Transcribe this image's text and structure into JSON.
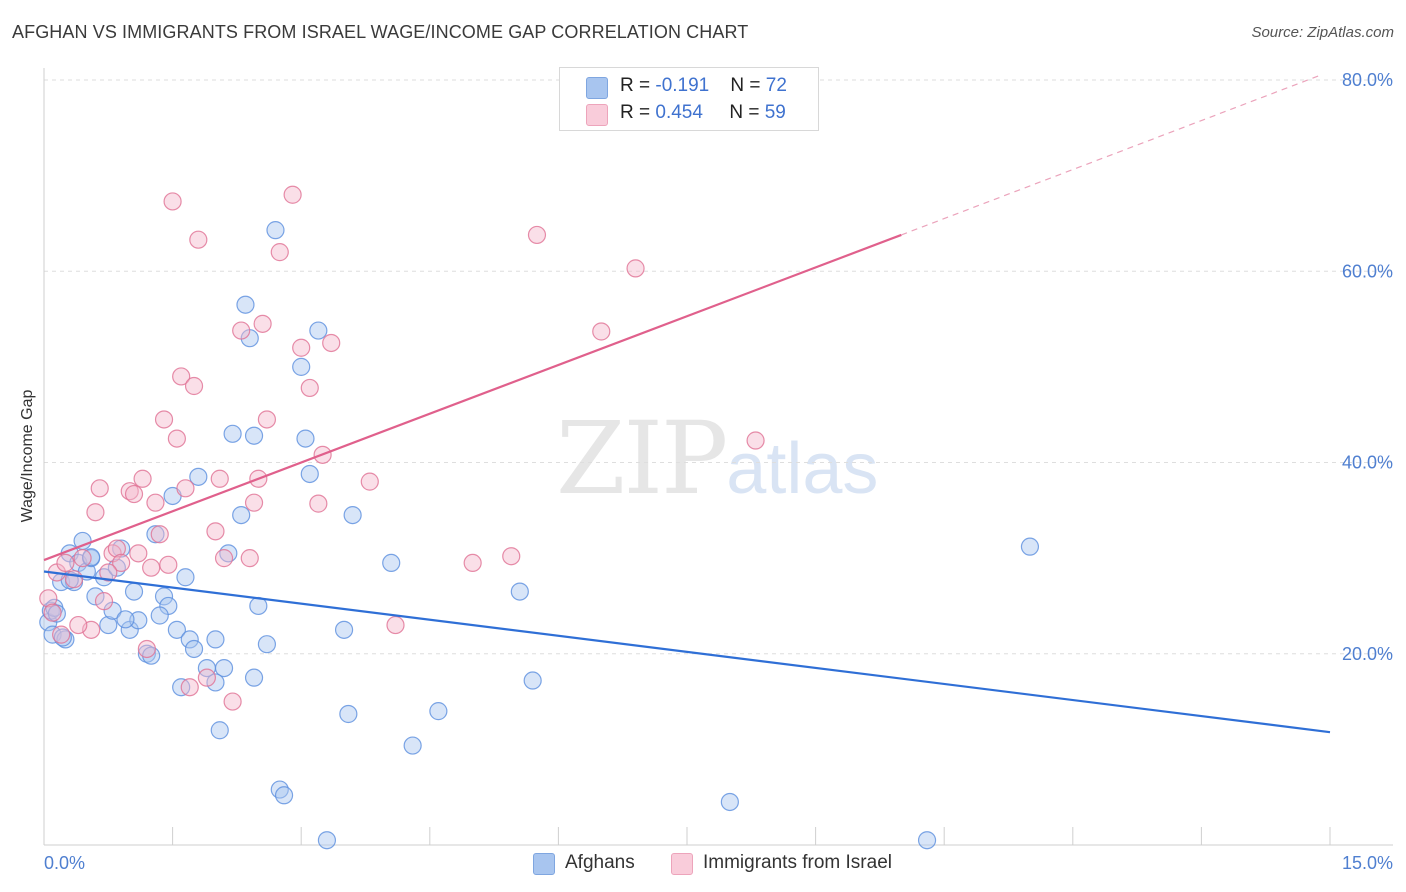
{
  "header": {
    "title": "AFGHAN VS IMMIGRANTS FROM ISRAEL WAGE/INCOME GAP CORRELATION CHART",
    "source": "Source: ZipAtlas.com"
  },
  "watermark": {
    "zip": "ZIP",
    "atlas": "atlas"
  },
  "legend": {
    "rows": [
      {
        "r_label": "R = ",
        "r_value": "-0.191",
        "n_label": "N = ",
        "n_value": "72",
        "color": "#a8c5ef"
      },
      {
        "r_label": "R = ",
        "r_value": "0.454",
        "n_label": "N = ",
        "n_value": "59",
        "color": "#f5b8cb"
      }
    ]
  },
  "bottom_legend": [
    {
      "label": "Afghans",
      "color": "#a8c5ef"
    },
    {
      "label": "Immigrants from Israel",
      "color": "#f5b8cb"
    }
  ],
  "chart_data": {
    "type": "scatter",
    "title": "AFGHAN VS IMMIGRANTS FROM ISRAEL WAGE/INCOME GAP CORRELATION CHART",
    "xlabel": "",
    "ylabel": "Wage/Income Gap",
    "xlim": [
      0,
      15
    ],
    "ylim": [
      0,
      80
    ],
    "x_tick_labels": [
      "0.0%",
      "15.0%"
    ],
    "y_ticks": [
      20,
      40,
      60,
      80
    ],
    "y_tick_labels": [
      "20.0%",
      "40.0%",
      "60.0%",
      "80.0%"
    ],
    "grid": true,
    "series": [
      {
        "name": "Afghans",
        "color": "#5b8fdf",
        "fill": "#a8c5ef",
        "trend": {
          "x0": 0.0,
          "y0": 28.6,
          "x1": 15.0,
          "y1": 11.8
        },
        "points": [
          [
            0.05,
            23.3
          ],
          [
            0.08,
            24.5
          ],
          [
            0.1,
            22.0
          ],
          [
            0.12,
            24.8
          ],
          [
            0.2,
            27.5
          ],
          [
            0.25,
            21.5
          ],
          [
            0.3,
            30.5
          ],
          [
            0.35,
            27.5
          ],
          [
            0.4,
            29.5
          ],
          [
            0.45,
            31.8
          ],
          [
            0.5,
            28.6
          ],
          [
            0.55,
            30.0
          ],
          [
            0.6,
            26.0
          ],
          [
            0.7,
            28.0
          ],
          [
            0.75,
            23.0
          ],
          [
            0.8,
            24.5
          ],
          [
            0.85,
            29.0
          ],
          [
            0.9,
            31.0
          ],
          [
            1.0,
            22.5
          ],
          [
            1.05,
            26.5
          ],
          [
            1.1,
            23.5
          ],
          [
            1.2,
            20.0
          ],
          [
            1.3,
            32.5
          ],
          [
            1.4,
            26.0
          ],
          [
            1.45,
            25.0
          ],
          [
            1.5,
            36.5
          ],
          [
            1.55,
            22.5
          ],
          [
            1.6,
            16.5
          ],
          [
            1.65,
            28.0
          ],
          [
            1.7,
            21.5
          ],
          [
            1.75,
            20.5
          ],
          [
            1.8,
            38.5
          ],
          [
            1.9,
            18.5
          ],
          [
            2.0,
            21.5
          ],
          [
            2.05,
            12.0
          ],
          [
            2.1,
            18.5
          ],
          [
            2.2,
            43.0
          ],
          [
            2.3,
            34.5
          ],
          [
            2.35,
            56.5
          ],
          [
            2.4,
            53.0
          ],
          [
            2.45,
            17.5
          ],
          [
            2.5,
            25.0
          ],
          [
            2.6,
            21.0
          ],
          [
            2.7,
            64.3
          ],
          [
            2.75,
            5.8
          ],
          [
            2.8,
            5.2
          ],
          [
            3.0,
            50.0
          ],
          [
            3.05,
            42.5
          ],
          [
            3.1,
            38.8
          ],
          [
            3.2,
            53.8
          ],
          [
            3.3,
            0.5
          ],
          [
            3.5,
            22.5
          ],
          [
            3.55,
            13.7
          ],
          [
            3.6,
            34.5
          ],
          [
            4.05,
            29.5
          ],
          [
            4.3,
            10.4
          ],
          [
            4.6,
            14.0
          ],
          [
            5.55,
            26.5
          ],
          [
            5.7,
            17.2
          ],
          [
            8.0,
            4.5
          ],
          [
            10.3,
            0.5
          ],
          [
            11.5,
            31.2
          ],
          [
            0.15,
            24.2
          ],
          [
            0.3,
            27.7
          ],
          [
            0.95,
            23.6
          ],
          [
            1.25,
            19.8
          ],
          [
            0.55,
            30.1
          ],
          [
            1.35,
            24.0
          ],
          [
            2.15,
            30.5
          ],
          [
            2.45,
            42.8
          ],
          [
            0.22,
            21.7
          ],
          [
            2.0,
            17.0
          ]
        ]
      },
      {
        "name": "Immigrants from Israel",
        "color": "#e07094",
        "fill": "#f5b8cb",
        "trend": {
          "x0": 0.0,
          "y0": 29.8,
          "x1": 10.0,
          "y1": 63.8
        },
        "trend_ext": {
          "x0": 10.0,
          "y0": 63.8,
          "x1": 15.0,
          "y1": 80.8
        },
        "points": [
          [
            0.05,
            25.8
          ],
          [
            0.1,
            24.3
          ],
          [
            0.15,
            28.5
          ],
          [
            0.2,
            22.0
          ],
          [
            0.25,
            29.5
          ],
          [
            0.35,
            27.8
          ],
          [
            0.45,
            30.0
          ],
          [
            0.55,
            22.5
          ],
          [
            0.6,
            34.8
          ],
          [
            0.65,
            37.3
          ],
          [
            0.7,
            25.5
          ],
          [
            0.8,
            30.5
          ],
          [
            0.85,
            31.0
          ],
          [
            0.9,
            29.5
          ],
          [
            1.0,
            37.0
          ],
          [
            1.05,
            36.7
          ],
          [
            1.1,
            30.5
          ],
          [
            1.15,
            38.3
          ],
          [
            1.2,
            20.5
          ],
          [
            1.3,
            35.8
          ],
          [
            1.35,
            32.5
          ],
          [
            1.4,
            44.5
          ],
          [
            1.45,
            29.3
          ],
          [
            1.5,
            67.3
          ],
          [
            1.55,
            42.5
          ],
          [
            1.6,
            49.0
          ],
          [
            1.65,
            37.3
          ],
          [
            1.7,
            16.5
          ],
          [
            1.75,
            48.0
          ],
          [
            1.8,
            63.3
          ],
          [
            1.9,
            17.5
          ],
          [
            2.0,
            32.8
          ],
          [
            2.05,
            38.3
          ],
          [
            2.1,
            30.0
          ],
          [
            2.2,
            15.0
          ],
          [
            2.3,
            53.8
          ],
          [
            2.45,
            35.8
          ],
          [
            2.5,
            38.3
          ],
          [
            2.55,
            54.5
          ],
          [
            2.6,
            44.5
          ],
          [
            2.75,
            62.0
          ],
          [
            2.9,
            68.0
          ],
          [
            3.0,
            52.0
          ],
          [
            3.1,
            47.8
          ],
          [
            3.2,
            35.7
          ],
          [
            3.25,
            40.8
          ],
          [
            3.35,
            52.5
          ],
          [
            3.8,
            38.0
          ],
          [
            4.1,
            23.0
          ],
          [
            5.0,
            29.5
          ],
          [
            5.45,
            30.2
          ],
          [
            5.75,
            63.8
          ],
          [
            6.5,
            53.7
          ],
          [
            6.9,
            60.3
          ],
          [
            8.3,
            42.3
          ],
          [
            0.4,
            23.0
          ],
          [
            0.75,
            28.5
          ],
          [
            1.25,
            29.0
          ],
          [
            2.4,
            30.0
          ]
        ]
      }
    ]
  }
}
